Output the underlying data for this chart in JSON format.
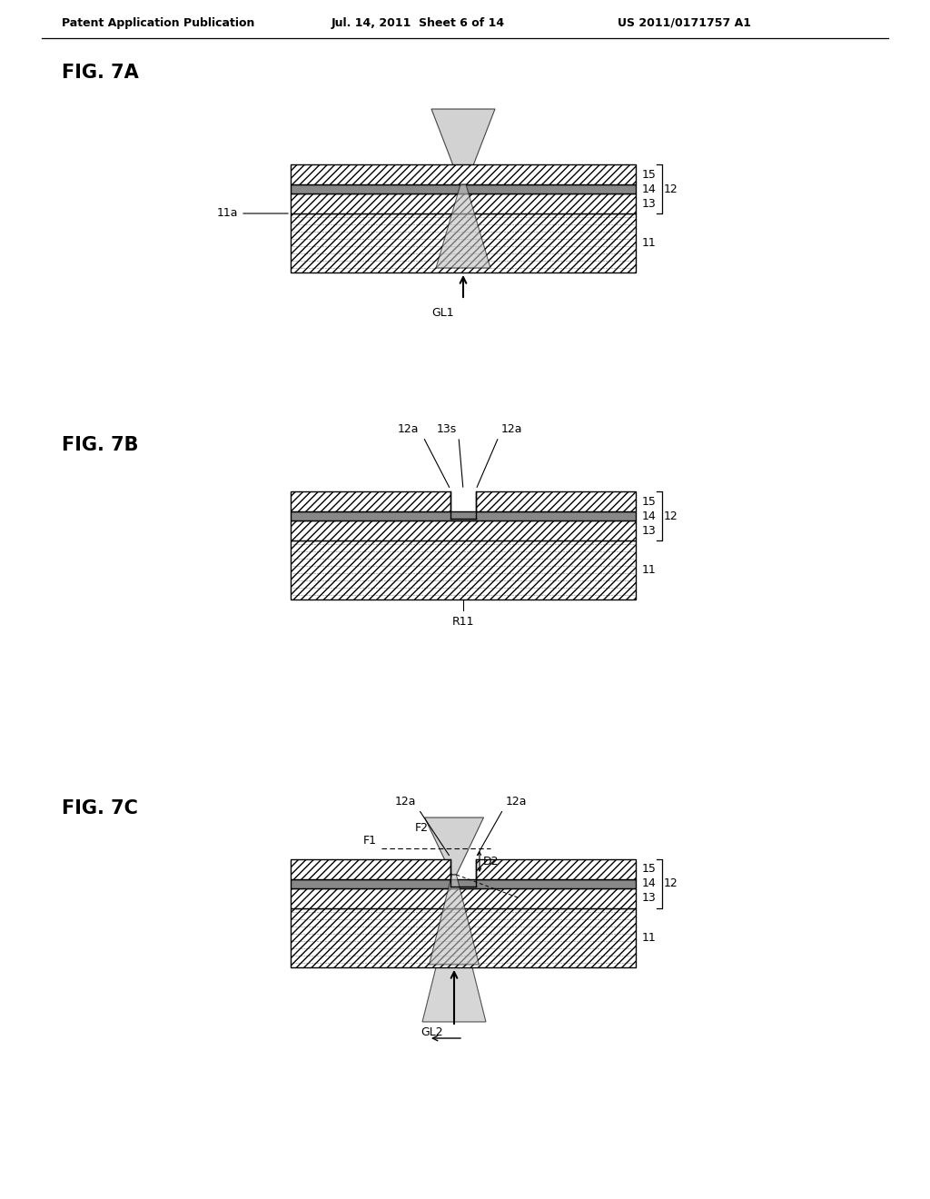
{
  "bg_color": "#ffffff",
  "header_left": "Patent Application Publication",
  "header_mid": "Jul. 14, 2011  Sheet 6 of 14",
  "header_right": "US 2011/0171757 A1",
  "fig_labels": [
    "FIG. 7A",
    "FIG. 7B",
    "FIG. 7C"
  ],
  "beam_color": "#c0c0c0",
  "line_color": "#000000"
}
